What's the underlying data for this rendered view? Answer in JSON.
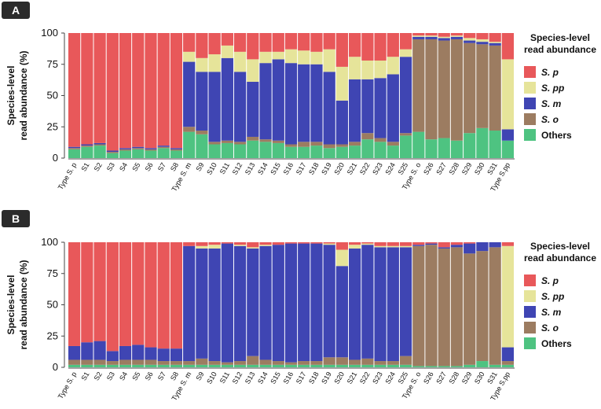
{
  "colors": {
    "S. p": "#E8585A",
    "S. pp": "#E6E49A",
    "S. m": "#3F45B3",
    "S. o": "#9C7C61",
    "Others": "#4EC381",
    "badge": "#2B2B2B"
  },
  "chart_data": [
    {
      "panel": "A",
      "type": "bar",
      "stacked": true,
      "ylabel_line1": "Species-level",
      "ylabel_line2": "read abundance (%)",
      "ylim": [
        0,
        100
      ],
      "yticks": [
        "0",
        "25",
        "50",
        "75",
        "100"
      ],
      "legend_title": "Species-level read abundance",
      "legend_title_line1": "Species-level",
      "legend_title_line2": "read abundance",
      "legend": [
        "S. p",
        "S. pp",
        "S. m",
        "S. o",
        "Others"
      ],
      "categories": [
        "Type S. p",
        "S1",
        "S2",
        "S3",
        "S4",
        "S5",
        "S6",
        "S7",
        "S8",
        "Type S. m",
        "S9",
        "S10",
        "S11",
        "S12",
        "S13",
        "S14",
        "S15",
        "S16",
        "S17",
        "S18",
        "S19",
        "S20",
        "S21",
        "S22",
        "S23",
        "S24",
        "S25",
        "Type S. o",
        "S26",
        "S27",
        "S28",
        "S29",
        "S30",
        "S31",
        "Type S.pp"
      ],
      "series": [
        {
          "name": "Others",
          "values": [
            7,
            9,
            10,
            4,
            6,
            7,
            6,
            8,
            6,
            21,
            19,
            11,
            12,
            11,
            14,
            13,
            12,
            9,
            9,
            10,
            8,
            9,
            10,
            15,
            13,
            10,
            18,
            21,
            15,
            16,
            14,
            20,
            24,
            22,
            14
          ]
        },
        {
          "name": "S. o",
          "values": [
            1,
            1,
            1,
            1,
            1,
            1,
            1,
            1,
            1,
            4,
            3,
            2,
            2,
            2,
            3,
            2,
            2,
            2,
            4,
            3,
            3,
            2,
            3,
            5,
            3,
            3,
            2,
            74,
            80,
            78,
            81,
            72,
            67,
            68,
            0
          ]
        },
        {
          "name": "S. m",
          "values": [
            1,
            1,
            1,
            1,
            1,
            1,
            1,
            1,
            1,
            52,
            47,
            56,
            66,
            56,
            44,
            61,
            65,
            65,
            62,
            62,
            58,
            35,
            50,
            43,
            48,
            54,
            61,
            2,
            2,
            2,
            2,
            2,
            2,
            2,
            9
          ]
        },
        {
          "name": "S. pp",
          "values": [
            0,
            0,
            0,
            0,
            0,
            0,
            0,
            0,
            0,
            8,
            11,
            14,
            10,
            16,
            18,
            9,
            6,
            11,
            11,
            10,
            18,
            27,
            18,
            15,
            14,
            14,
            6,
            1,
            1,
            1,
            1,
            2,
            2,
            1,
            56
          ]
        },
        {
          "name": "S. p",
          "values": [
            91,
            89,
            88,
            94,
            92,
            91,
            92,
            90,
            92,
            15,
            20,
            17,
            10,
            15,
            21,
            15,
            15,
            13,
            14,
            15,
            13,
            27,
            19,
            22,
            22,
            19,
            13,
            2,
            2,
            3,
            2,
            4,
            5,
            7,
            21
          ]
        }
      ]
    },
    {
      "panel": "B",
      "type": "bar",
      "stacked": true,
      "ylabel_line1": "Species-level",
      "ylabel_line2": "read abundance (%)",
      "ylim": [
        0,
        100
      ],
      "yticks": [
        "0",
        "25",
        "50",
        "75",
        "100"
      ],
      "legend_title": "Species-level read abundance",
      "legend_title_line1": "Species-level",
      "legend_title_line2": "read abundance",
      "legend": [
        "S. p",
        "S. pp",
        "S. m",
        "S. o",
        "Others"
      ],
      "categories": [
        "Type S. p",
        "S1",
        "S2",
        "S3",
        "S4",
        "S5",
        "S6",
        "S7",
        "S8",
        "Type S. m",
        "S9",
        "S10",
        "S11",
        "S12",
        "S13",
        "S14",
        "S15",
        "S16",
        "S17",
        "S18",
        "S19",
        "S20",
        "S21",
        "S22",
        "S23",
        "S24",
        "S25",
        "Type S. o",
        "S26",
        "S27",
        "S28",
        "S29",
        "S30",
        "S31",
        "Type S.pp"
      ],
      "series": [
        {
          "name": "Others",
          "values": [
            2,
            2,
            2,
            2,
            2,
            2,
            2,
            2,
            2,
            2,
            2,
            2,
            2,
            2,
            2,
            2,
            2,
            2,
            2,
            2,
            2,
            2,
            2,
            2,
            2,
            2,
            2,
            1,
            1,
            1,
            1,
            2,
            5,
            2,
            2
          ]
        },
        {
          "name": "S. o",
          "values": [
            4,
            4,
            4,
            3,
            4,
            4,
            4,
            3,
            3,
            3,
            5,
            3,
            2,
            3,
            7,
            4,
            3,
            2,
            3,
            3,
            6,
            6,
            4,
            5,
            3,
            3,
            7,
            96,
            97,
            94,
            95,
            89,
            88,
            94,
            3
          ]
        },
        {
          "name": "S. m",
          "values": [
            11,
            14,
            15,
            8,
            11,
            12,
            10,
            10,
            10,
            92,
            88,
            90,
            95,
            92,
            86,
            91,
            93,
            95,
            94,
            94,
            90,
            73,
            89,
            91,
            91,
            91,
            87,
            1,
            1,
            1,
            2,
            8,
            7,
            4,
            11
          ]
        },
        {
          "name": "S. pp",
          "values": [
            0,
            0,
            0,
            0,
            0,
            0,
            0,
            0,
            0,
            0,
            2,
            3,
            0,
            1,
            1,
            1,
            0,
            0,
            0,
            0,
            1,
            13,
            3,
            1,
            1,
            1,
            1,
            0,
            0,
            0,
            0,
            0,
            0,
            0,
            81
          ]
        },
        {
          "name": "S. p",
          "values": [
            83,
            80,
            79,
            87,
            83,
            82,
            84,
            85,
            85,
            3,
            3,
            2,
            1,
            2,
            4,
            2,
            2,
            1,
            1,
            1,
            1,
            6,
            2,
            1,
            3,
            3,
            3,
            2,
            1,
            4,
            2,
            1,
            0,
            0,
            3
          ]
        }
      ]
    }
  ]
}
